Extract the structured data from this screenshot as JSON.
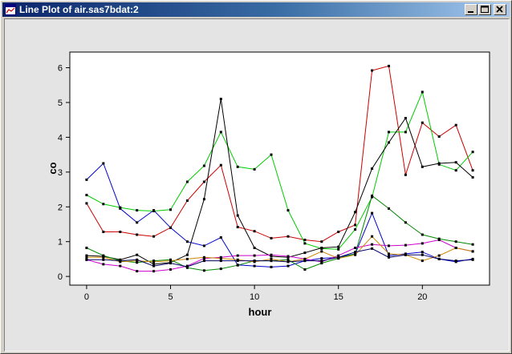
{
  "window": {
    "title": "Line Plot of air.sas7bdat:2"
  },
  "title_buttons": {
    "minimize": "minimize-icon",
    "maximize": "maximize-icon",
    "close": "close-icon"
  },
  "colors": {
    "titlebar_start": "#0a246a",
    "titlebar_end": "#a6caf0",
    "plot_bg": "#ffffff",
    "client_bg": "#e4e4e4"
  },
  "chart_data": {
    "type": "line",
    "xlabel": "hour",
    "ylabel": "co",
    "xlim": [
      -1,
      24
    ],
    "ylim": [
      -0.25,
      6.45
    ],
    "xticks": [
      0,
      5,
      10,
      15,
      20
    ],
    "yticks": [
      0,
      1,
      2,
      3,
      4,
      5,
      6
    ],
    "grid": false,
    "legend": "none",
    "x": [
      0,
      1,
      2,
      3,
      4,
      5,
      6,
      7,
      8,
      9,
      10,
      11,
      12,
      13,
      14,
      15,
      16,
      17,
      18,
      19,
      20,
      21,
      22,
      23
    ],
    "series": [
      {
        "color": "#0000cc",
        "values": [
          2.78,
          3.25,
          1.95,
          1.55,
          1.9,
          1.4,
          1.0,
          0.88,
          1.12,
          0.33,
          0.3,
          0.27,
          0.3,
          0.45,
          0.52,
          0.55,
          0.65,
          1.82,
          0.6,
          0.65,
          0.7,
          0.5,
          0.42,
          0.5
        ]
      },
      {
        "color": "#cc0000",
        "values": [
          2.1,
          1.28,
          1.28,
          1.2,
          1.15,
          1.4,
          2.18,
          2.72,
          3.2,
          1.42,
          1.3,
          1.1,
          1.15,
          1.05,
          1.0,
          1.28,
          1.48,
          5.92,
          6.05,
          2.92,
          4.42,
          4.02,
          4.35,
          3.05
        ]
      },
      {
        "color": "#00cc00",
        "values": [
          2.34,
          2.08,
          1.98,
          1.9,
          1.88,
          1.92,
          2.72,
          3.18,
          4.15,
          3.15,
          3.08,
          3.5,
          1.9,
          0.95,
          0.8,
          0.78,
          1.35,
          2.28,
          4.15,
          4.15,
          5.3,
          3.22,
          3.05,
          3.58
        ]
      },
      {
        "color": "#000000",
        "values": [
          0.6,
          0.58,
          0.48,
          0.62,
          0.35,
          0.4,
          0.62,
          2.22,
          5.1,
          1.75,
          0.82,
          0.58,
          0.55,
          0.68,
          0.82,
          0.85,
          1.85,
          3.1,
          3.85,
          4.55,
          3.15,
          3.25,
          3.28,
          2.85
        ]
      },
      {
        "color": "#008800",
        "values": [
          0.82,
          0.6,
          0.45,
          0.4,
          0.45,
          0.48,
          0.25,
          0.17,
          0.22,
          0.32,
          0.45,
          0.45,
          0.48,
          0.2,
          0.38,
          0.52,
          0.65,
          2.32,
          1.95,
          1.55,
          1.2,
          1.08,
          1.0,
          0.92
        ]
      },
      {
        "color": "#cc00cc",
        "values": [
          0.48,
          0.35,
          0.3,
          0.15,
          0.15,
          0.2,
          0.3,
          0.52,
          0.55,
          0.6,
          0.6,
          0.62,
          0.58,
          0.5,
          0.42,
          0.6,
          0.82,
          0.92,
          0.88,
          0.9,
          0.95,
          1.05,
          0.82,
          0.72
        ]
      },
      {
        "color": "#cc8800",
        "values": [
          0.55,
          0.55,
          0.42,
          0.45,
          0.42,
          0.45,
          0.5,
          0.55,
          0.52,
          0.48,
          0.42,
          0.5,
          0.42,
          0.5,
          0.72,
          0.52,
          0.62,
          1.15,
          0.65,
          0.62,
          0.45,
          0.6,
          0.82,
          0.72
        ]
      },
      {
        "color": "#000066",
        "values": [
          0.48,
          0.48,
          0.45,
          0.48,
          0.3,
          0.38,
          0.28,
          0.45,
          0.45,
          0.45,
          0.45,
          0.45,
          0.42,
          0.45,
          0.45,
          0.55,
          0.7,
          0.8,
          0.55,
          0.62,
          0.62,
          0.5,
          0.45,
          0.48
        ]
      }
    ]
  }
}
